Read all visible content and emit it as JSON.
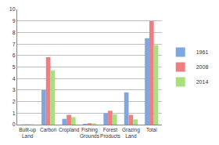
{
  "chart_data": {
    "type": "bar",
    "categories": [
      "Built-up Land",
      "Carbon",
      "Cropland",
      "Fishing Grounds",
      "Forest Products",
      "Grazing Land",
      "Total"
    ],
    "series": [
      {
        "name": "1961",
        "color": "#7ea6e0",
        "values": [
          0.02,
          3.0,
          0.5,
          0.07,
          1.0,
          2.8,
          7.5
        ]
      },
      {
        "name": "2008",
        "color": "#ef7f7f",
        "values": [
          0.03,
          5.85,
          0.85,
          0.12,
          1.2,
          0.85,
          9.0
        ]
      },
      {
        "name": "2014",
        "color": "#a8e07c",
        "values": [
          0.03,
          4.7,
          0.65,
          0.1,
          0.9,
          0.45,
          6.9
        ]
      }
    ],
    "ylim": [
      0,
      10
    ],
    "yticks": [
      0,
      1,
      2,
      3,
      4,
      5,
      6,
      7,
      8,
      9,
      10
    ],
    "grid": true,
    "legend": "right"
  }
}
